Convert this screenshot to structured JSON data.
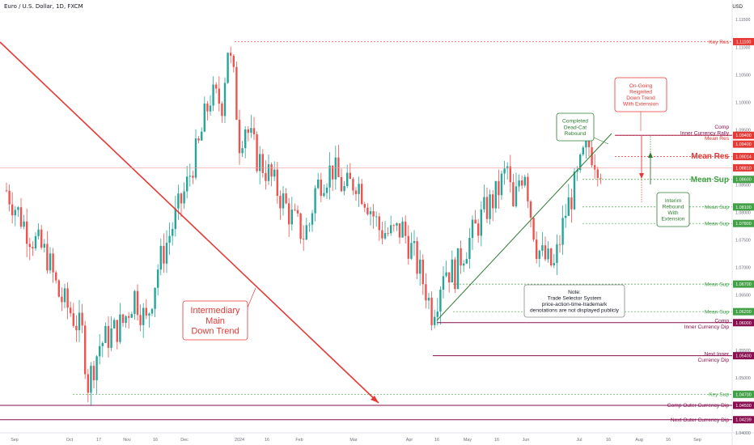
{
  "header": {
    "symbol": "Euro / U.S. Dollar, 1D, FXCM",
    "currency": "USD"
  },
  "colors": {
    "up": "#26a69a",
    "down": "#ef5350",
    "red_line": "#e53935",
    "resistance": "#e53935",
    "support": "#43a047",
    "comp": "#880e4f",
    "grid": "#f0f3fa"
  },
  "chart_data": {
    "type": "candlestick",
    "x_ticks": [
      "Sep",
      "Oct",
      "17",
      "Nov",
      "16",
      "Dec",
      "2024",
      "16",
      "Feb",
      "Mar",
      "Apr",
      "16",
      "May",
      "16",
      "Jun",
      "Jul",
      "16",
      "Aug",
      "16",
      "Sep"
    ],
    "y_ticks": [
      "1.11500",
      "1.11000",
      "1.10500",
      "1.10000",
      "1.09500",
      "1.08500",
      "1.08000",
      "1.07500",
      "1.07000",
      "1.06500",
      "1.06000",
      "1.05500",
      "1.05000",
      "1.04000"
    ],
    "ylim": [
      1.04,
      1.1165
    ],
    "price_tags": [
      {
        "value": "1.11100",
        "kind": "resistance"
      },
      {
        "value": "1.09400",
        "kind": "resistance"
      },
      {
        "value": "1.09400",
        "kind": "resistance"
      },
      {
        "value": "1.09014",
        "kind": "resistance"
      },
      {
        "value": "1.08810",
        "kind": "resistance"
      },
      {
        "value": "1.08600",
        "kind": "support"
      },
      {
        "value": "1.08100",
        "kind": "support"
      },
      {
        "value": "1.07800",
        "kind": "support"
      },
      {
        "value": "1.06700",
        "kind": "support"
      },
      {
        "value": "1.06200",
        "kind": "support"
      },
      {
        "value": "1.06000",
        "kind": "comp"
      },
      {
        "value": "1.05400",
        "kind": "comp"
      },
      {
        "value": "1.04700",
        "kind": "support"
      },
      {
        "value": "1.04500",
        "kind": "comp"
      },
      {
        "value": "1.04239",
        "kind": "comp"
      }
    ],
    "levels": [
      {
        "label": "Key Res",
        "value": 1.111,
        "kind": "resistance"
      },
      {
        "label": "Comp\nInner Currency Rally",
        "value": 1.094,
        "kind": "comp"
      },
      {
        "label": "Mean Res",
        "value": 1.094,
        "kind": "resistance"
      },
      {
        "label": "Mean Res",
        "value": 1.09014,
        "kind": "resistance"
      },
      {
        "label": "Mean Sup",
        "value": 1.086,
        "kind": "support"
      },
      {
        "label": "Mean Sup",
        "value": 1.081,
        "kind": "support"
      },
      {
        "label": "Mean Sup",
        "value": 1.078,
        "kind": "support"
      },
      {
        "label": "Mean Sup",
        "value": 1.067,
        "kind": "support"
      },
      {
        "label": "Mean Sup",
        "value": 1.062,
        "kind": "support"
      },
      {
        "label": "Comp\nInner Currency Dip",
        "value": 1.06,
        "kind": "comp"
      },
      {
        "label": "Next Inner\nCurrency Dip",
        "value": 1.054,
        "kind": "comp"
      },
      {
        "label": "Key Sup",
        "value": 1.047,
        "kind": "support"
      },
      {
        "label": "Comp Outer Currency Dip",
        "value": 1.045,
        "kind": "comp"
      },
      {
        "label": "Next Outer Currency Dip",
        "value": 1.04239,
        "kind": "comp"
      }
    ],
    "annotations": [
      {
        "text": "Completed\nDead-Cat\nRebound"
      },
      {
        "text": "On-Going\nReignited\nDown Trend\nWith Extension"
      },
      {
        "text": "Interim\nRebound\nWith\nExtension"
      },
      {
        "text": "Note:\nTrade Selector System\nprice-action-time-trademark\ndenotations are not displayed publicly"
      },
      {
        "text": "Intermediary\nMain\nDown Trend"
      }
    ],
    "series_points": [
      [
        0,
        1.084
      ],
      [
        8,
        1.076
      ],
      [
        14,
        1.072
      ],
      [
        18,
        1.065
      ],
      [
        22,
        1.062
      ],
      [
        26,
        1.058
      ],
      [
        28,
        1.049
      ],
      [
        32,
        1.056
      ],
      [
        36,
        1.058
      ],
      [
        40,
        1.06
      ],
      [
        44,
        1.065
      ],
      [
        48,
        1.06
      ],
      [
        52,
        1.07
      ],
      [
        56,
        1.076
      ],
      [
        60,
        1.082
      ],
      [
        62,
        1.085
      ],
      [
        64,
        1.089
      ],
      [
        66,
        1.092
      ],
      [
        68,
        1.097
      ],
      [
        70,
        1.101
      ],
      [
        74,
        1.1
      ],
      [
        76,
        1.11
      ],
      [
        78,
        1.104
      ],
      [
        80,
        1.093
      ],
      [
        82,
        1.096
      ],
      [
        84,
        1.093
      ],
      [
        86,
        1.09
      ],
      [
        90,
        1.087
      ],
      [
        94,
        1.083
      ],
      [
        98,
        1.079
      ],
      [
        102,
        1.076
      ],
      [
        104,
        1.078
      ],
      [
        106,
        1.084
      ],
      [
        108,
        1.086
      ],
      [
        112,
        1.088
      ],
      [
        116,
        1.084
      ],
      [
        120,
        1.086
      ],
      [
        124,
        1.082
      ],
      [
        128,
        1.077
      ],
      [
        132,
        1.076
      ],
      [
        136,
        1.077
      ],
      [
        140,
        1.072
      ],
      [
        144,
        1.066
      ],
      [
        146,
        1.062
      ],
      [
        148,
        1.065
      ],
      [
        150,
        1.07
      ],
      [
        154,
        1.069
      ],
      [
        156,
        1.072
      ],
      [
        160,
        1.076
      ],
      [
        164,
        1.08
      ],
      [
        168,
        1.083
      ],
      [
        172,
        1.088
      ],
      [
        174,
        1.08
      ],
      [
        176,
        1.086
      ],
      [
        178,
        1.088
      ],
      [
        180,
        1.08
      ],
      [
        182,
        1.074
      ],
      [
        184,
        1.072
      ],
      [
        186,
        1.071
      ],
      [
        188,
        1.07
      ],
      [
        190,
        1.075
      ],
      [
        192,
        1.08
      ],
      [
        194,
        1.083
      ],
      [
        196,
        1.086
      ],
      [
        198,
        1.09
      ],
      [
        200,
        1.092
      ],
      [
        202,
        1.09
      ],
      [
        204,
        1.0885
      ]
    ]
  }
}
